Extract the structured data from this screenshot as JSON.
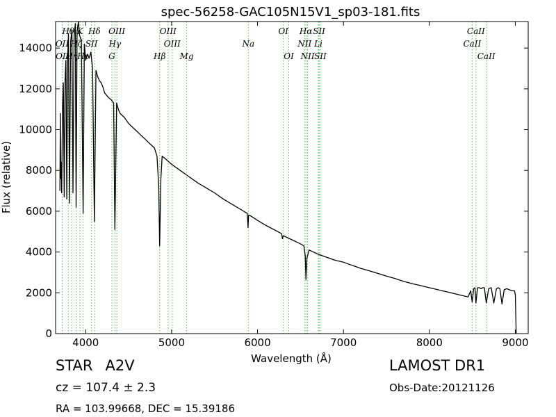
{
  "chart_data": {
    "type": "line",
    "title": "spec-56258-GAC105N15V1_sp03-181.fits",
    "xlabel": "Wavelength (Å)",
    "ylabel": "Flux (relative)",
    "xlim": [
      3650,
      9150
    ],
    "ylim": [
      0,
      15300
    ],
    "xticks": [
      4000,
      5000,
      6000,
      7000,
      8000,
      9000
    ],
    "yticks": [
      0,
      2000,
      4000,
      6000,
      8000,
      10000,
      12000,
      14000
    ],
    "grid": false,
    "series": [
      {
        "color": "#000000",
        "points": [
          [
            3700,
            7000
          ],
          [
            3705,
            10800
          ],
          [
            3710,
            7600
          ],
          [
            3715,
            8400
          ],
          [
            3720,
            6900
          ],
          [
            3730,
            11000
          ],
          [
            3740,
            12300
          ],
          [
            3750,
            6700
          ],
          [
            3760,
            12400
          ],
          [
            3770,
            13400
          ],
          [
            3780,
            6600
          ],
          [
            3790,
            13600
          ],
          [
            3800,
            14700
          ],
          [
            3812,
            6400
          ],
          [
            3825,
            14300
          ],
          [
            3840,
            14900
          ],
          [
            3852,
            6900
          ],
          [
            3865,
            14600
          ],
          [
            3880,
            15200
          ],
          [
            3889,
            6200
          ],
          [
            3900,
            14800
          ],
          [
            3915,
            15300
          ],
          [
            3930,
            14600
          ],
          [
            3950,
            14400
          ],
          [
            3970,
            5900
          ],
          [
            3985,
            14200
          ],
          [
            4000,
            13400
          ],
          [
            4020,
            13700
          ],
          [
            4040,
            13500
          ],
          [
            4060,
            13800
          ],
          [
            4080,
            13000
          ],
          [
            4101,
            5500
          ],
          [
            4120,
            12900
          ],
          [
            4140,
            12600
          ],
          [
            4160,
            12400
          ],
          [
            4180,
            12300
          ],
          [
            4200,
            12100
          ],
          [
            4220,
            11800
          ],
          [
            4240,
            11700
          ],
          [
            4260,
            11600
          ],
          [
            4300,
            11450
          ],
          [
            4325,
            11300
          ],
          [
            4340,
            5100
          ],
          [
            4360,
            11300
          ],
          [
            4380,
            11000
          ],
          [
            4400,
            10800
          ],
          [
            4450,
            10600
          ],
          [
            4500,
            10300
          ],
          [
            4550,
            10100
          ],
          [
            4600,
            9900
          ],
          [
            4650,
            9700
          ],
          [
            4700,
            9500
          ],
          [
            4750,
            9300
          ],
          [
            4800,
            9100
          ],
          [
            4830,
            8700
          ],
          [
            4850,
            7200
          ],
          [
            4861,
            4300
          ],
          [
            4875,
            7600
          ],
          [
            4890,
            8700
          ],
          [
            4920,
            8600
          ],
          [
            5000,
            8300
          ],
          [
            5100,
            8000
          ],
          [
            5200,
            7700
          ],
          [
            5300,
            7400
          ],
          [
            5400,
            7150
          ],
          [
            5500,
            6900
          ],
          [
            5600,
            6600
          ],
          [
            5700,
            6350
          ],
          [
            5800,
            6100
          ],
          [
            5880,
            5900
          ],
          [
            5890,
            5200
          ],
          [
            5896,
            5800
          ],
          [
            5910,
            5800
          ],
          [
            6000,
            5550
          ],
          [
            6100,
            5300
          ],
          [
            6200,
            5080
          ],
          [
            6280,
            4900
          ],
          [
            6290,
            4650
          ],
          [
            6300,
            4800
          ],
          [
            6400,
            4600
          ],
          [
            6500,
            4400
          ],
          [
            6540,
            4300
          ],
          [
            6555,
            3800
          ],
          [
            6563,
            2650
          ],
          [
            6575,
            3700
          ],
          [
            6600,
            4100
          ],
          [
            6700,
            3900
          ],
          [
            6800,
            3750
          ],
          [
            6900,
            3600
          ],
          [
            7000,
            3500
          ],
          [
            7100,
            3350
          ],
          [
            7200,
            3200
          ],
          [
            7300,
            3080
          ],
          [
            7400,
            2950
          ],
          [
            7500,
            2820
          ],
          [
            7600,
            2700
          ],
          [
            7700,
            2560
          ],
          [
            7800,
            2450
          ],
          [
            7900,
            2350
          ],
          [
            8000,
            2250
          ],
          [
            8100,
            2150
          ],
          [
            8200,
            2050
          ],
          [
            8300,
            1950
          ],
          [
            8400,
            1850
          ],
          [
            8450,
            1800
          ],
          [
            8480,
            2100
          ],
          [
            8498,
            1550
          ],
          [
            8515,
            2200
          ],
          [
            8530,
            2250
          ],
          [
            8542,
            1500
          ],
          [
            8560,
            2250
          ],
          [
            8585,
            2250
          ],
          [
            8600,
            2200
          ],
          [
            8620,
            2250
          ],
          [
            8640,
            2250
          ],
          [
            8662,
            1500
          ],
          [
            8690,
            2200
          ],
          [
            8720,
            2250
          ],
          [
            8750,
            1500
          ],
          [
            8780,
            2200
          ],
          [
            8800,
            2250
          ],
          [
            8820,
            2200
          ],
          [
            8845,
            1450
          ],
          [
            8870,
            2150
          ],
          [
            8900,
            2200
          ],
          [
            8930,
            2150
          ],
          [
            8960,
            2100
          ],
          [
            8990,
            2100
          ],
          [
            9000,
            1900
          ],
          [
            9010,
            0
          ]
        ]
      }
    ],
    "lines": [
      {
        "name": "OII",
        "x": 3727,
        "row": 2
      },
      {
        "name": "OII",
        "x": 3729,
        "row": 3
      },
      {
        "name": "Hθ",
        "x": 3797,
        "row": 1
      },
      {
        "name": "Hη",
        "x": 3835,
        "row": 3
      },
      {
        "name": "Hζ",
        "x": 3889,
        "row": 2
      },
      {
        "name": "K",
        "x": 3934,
        "row": 1
      },
      {
        "name": "SII",
        "x": 4068,
        "row": 2
      },
      {
        "name": "Hε",
        "x": 3970,
        "row": 3
      },
      {
        "name": "Hδ",
        "x": 4102,
        "row": 1
      },
      {
        "name": "OIII",
        "x": 4363,
        "row": 1
      },
      {
        "name": "Hγ",
        "x": 4340,
        "row": 2
      },
      {
        "name": "G",
        "x": 4305,
        "row": 3
      },
      {
        "name": "OIII",
        "x": 4959,
        "row": 1
      },
      {
        "name": "OIII",
        "x": 5007,
        "row": 2
      },
      {
        "name": "Hβ",
        "x": 4861,
        "row": 3
      },
      {
        "name": "Mg",
        "x": 5175,
        "row": 3
      },
      {
        "name": "Na",
        "x": 5893,
        "row": 2
      },
      {
        "name": "OI",
        "x": 6300,
        "row": 1
      },
      {
        "name": "OI",
        "x": 6364,
        "row": 3
      },
      {
        "name": "Hα",
        "x": 6563,
        "row": 1
      },
      {
        "name": "NII",
        "x": 6548,
        "row": 2
      },
      {
        "name": "NII",
        "x": 6583,
        "row": 3
      },
      {
        "name": "SII",
        "x": 6716,
        "row": 1
      },
      {
        "name": "Li",
        "x": 6708,
        "row": 2
      },
      {
        "name": "SII",
        "x": 6731,
        "row": 3
      },
      {
        "name": "CaII",
        "x": 8542,
        "row": 1
      },
      {
        "name": "CaII",
        "x": 8498,
        "row": 2
      },
      {
        "name": "CaII",
        "x": 8662,
        "row": 3
      }
    ]
  },
  "info": {
    "type_label": "STAR",
    "subclass": "A2V",
    "cz_text": "cz = 107.4 ± 2.3",
    "radec_text": "RA = 103.99668, DEC = 15.39186",
    "survey": "LAMOST DR1",
    "obs_date": "Obs-Date:20121126"
  }
}
